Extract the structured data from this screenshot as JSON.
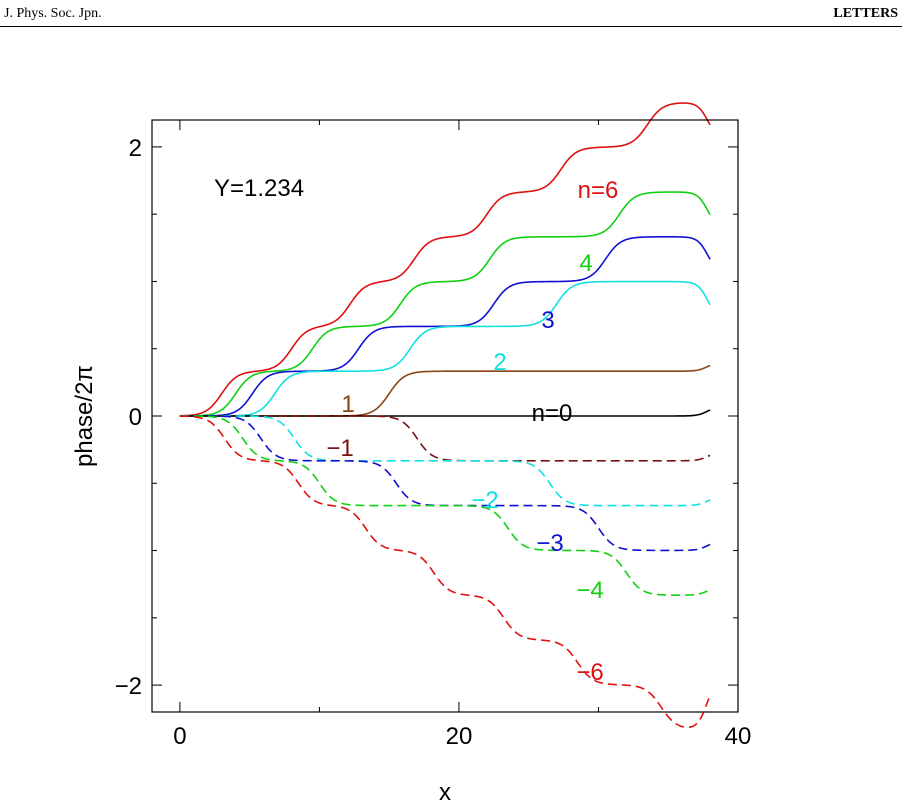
{
  "header": {
    "journal": "J. Phys. Soc. Jpn.",
    "section": "LETTERS"
  },
  "chart_data": {
    "type": "line",
    "xlabel": "x",
    "ylabel": "phase/2π",
    "annotation": "Y=1.234",
    "xlim": [
      -2,
      40
    ],
    "ylim": [
      -2.2,
      2.2
    ],
    "x_ticks": [
      0,
      20,
      40
    ],
    "x_tick_labels": [
      "0",
      "20",
      "40"
    ],
    "y_ticks": [
      -2,
      0,
      2
    ],
    "y_tick_labels": [
      "−2",
      "0",
      "2"
    ],
    "x_range_of_curves": [
      0,
      38
    ],
    "series": [
      {
        "label": "n=6",
        "n": 6,
        "color": "#e01010",
        "dash": "solid",
        "step_centers": [
          3,
          8,
          12.2,
          16.8,
          22,
          27.3,
          33.5
        ],
        "step_height": 0.333,
        "final": 2.07
      },
      {
        "label": "4",
        "n": 4,
        "color": "#10d010",
        "dash": "solid",
        "step_centers": [
          4,
          9.5,
          15.8,
          22.2,
          31.5
        ],
        "step_height": 0.333,
        "final": 1.4
      },
      {
        "label": "3",
        "n": 3,
        "color": "#1010d0",
        "dash": "solid",
        "step_centers": [
          5.2,
          12.8,
          22.5,
          30.5
        ],
        "step_height": 0.333,
        "final": 1.07
      },
      {
        "label": "2",
        "n": 2,
        "color": "#10e0e0",
        "dash": "solid",
        "step_centers": [
          6.8,
          16.5,
          27
        ],
        "step_height": 0.333,
        "final": 0.73
      },
      {
        "label": "1",
        "n": 1,
        "color": "#8b4513",
        "dash": "solid",
        "step_centers": [
          15
        ],
        "step_height": 0.333,
        "final": 0.4
      },
      {
        "label": "n=0",
        "n": 0,
        "color": "#000000",
        "dash": "solid",
        "step_centers": [],
        "step_height": 0.333,
        "final": 0.07
      },
      {
        "label": "−1",
        "n": -1,
        "color": "#7a1010",
        "dash": "dashed",
        "step_centers": [
          17
        ],
        "step_height": -0.333,
        "final": -0.27
      },
      {
        "label": "−2",
        "n": -2,
        "color": "#10e0e0",
        "dash": "dashed",
        "step_centers": [
          8.2,
          26.5
        ],
        "step_height": -0.333,
        "final": -0.6
      },
      {
        "label": "−3",
        "n": -3,
        "color": "#1010d0",
        "dash": "dashed",
        "step_centers": [
          5.8,
          15.5,
          30
        ],
        "step_height": -0.333,
        "final": -0.93
      },
      {
        "label": "−4",
        "n": -4,
        "color": "#10d010",
        "dash": "dashed",
        "step_centers": [
          4.5,
          10,
          23.5,
          32
        ],
        "step_height": -0.333,
        "final": -1.27
      },
      {
        "label": "−6",
        "n": -6,
        "color": "#e01010",
        "dash": "dashed",
        "step_centers": [
          3.2,
          8.5,
          13.3,
          18.2,
          23.2,
          28.5,
          34.5
        ],
        "step_height": -0.333,
        "final": -1.93
      }
    ]
  }
}
